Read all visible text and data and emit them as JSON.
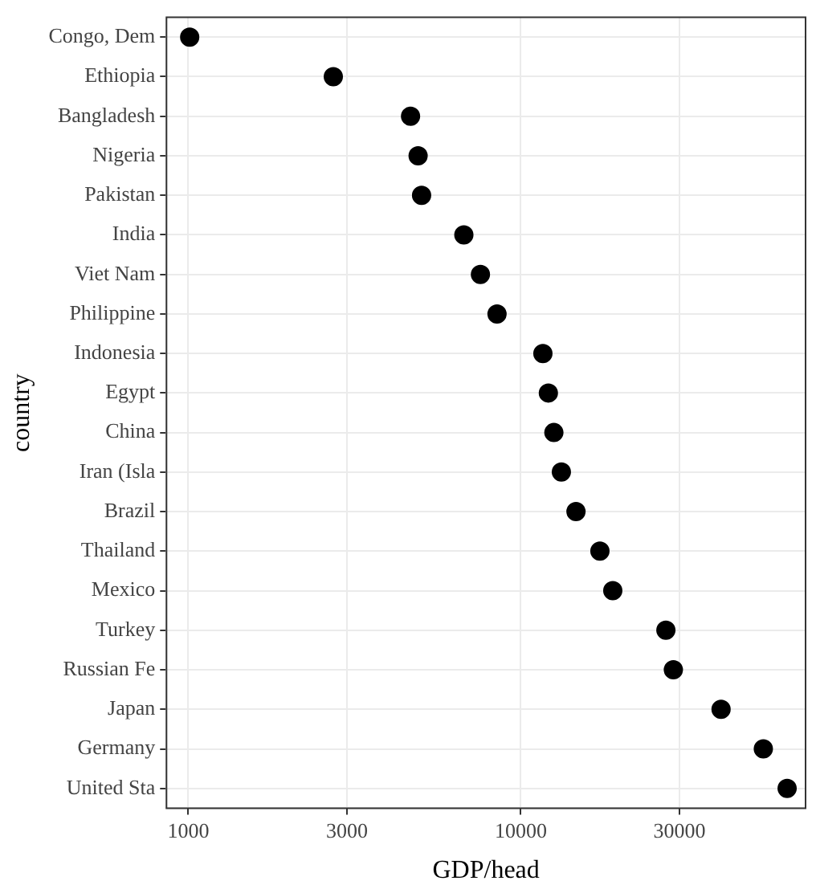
{
  "chart_data": {
    "type": "scatter",
    "xlabel": "GDP/head",
    "ylabel": "country",
    "categories": [
      "Congo, Dem",
      "Ethiopia",
      "Bangladesh",
      "Nigeria",
      "Pakistan",
      "India",
      "Viet Nam",
      "Philippine",
      "Indonesia",
      "Egypt",
      "China",
      "Iran (Isla",
      "Brazil",
      "Thailand",
      "Mexico",
      "Turkey",
      "Russian Fe",
      "Japan",
      "Germany",
      "United Sta"
    ],
    "values": [
      1010,
      2730,
      4660,
      4910,
      5030,
      6740,
      7560,
      8480,
      11650,
      12100,
      12570,
      13240,
      14650,
      17290,
      18900,
      27300,
      28750,
      40000,
      53600,
      63200
    ],
    "color": "#000000",
    "marker": "circle",
    "orientation": "horizontal",
    "log": "x",
    "xlim": [
      860,
      71800
    ],
    "xticks": [
      1000,
      3000,
      10000,
      30000
    ],
    "grid": true
  }
}
